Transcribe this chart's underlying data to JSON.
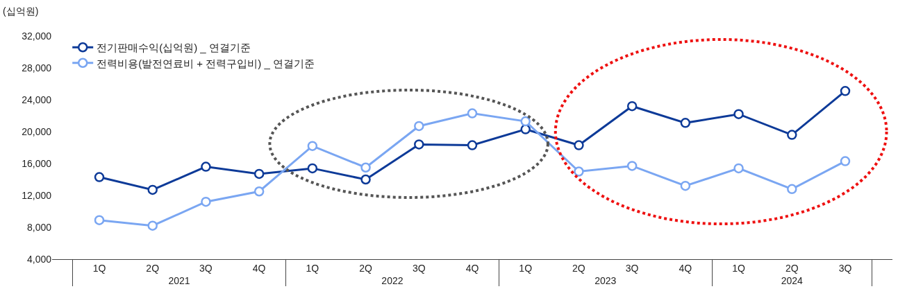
{
  "chart_data": {
    "type": "line",
    "ylabel": "(십억원)",
    "categories": [
      "1Q",
      "2Q",
      "3Q",
      "4Q",
      "1Q",
      "2Q",
      "3Q",
      "4Q",
      "1Q",
      "2Q",
      "3Q",
      "4Q",
      "1Q",
      "2Q",
      "3Q"
    ],
    "annotations": [
      "2021",
      "2022",
      "2023",
      "2024"
    ],
    "series": [
      {
        "name": "전기판매수익(십억원) _ 연결기준",
        "color": "#0d3a98",
        "values": [
          14300,
          12700,
          15600,
          14700,
          15400,
          14000,
          18400,
          18300,
          20300,
          18300,
          23200,
          21100,
          22200,
          19600,
          25100
        ]
      },
      {
        "name": "전력비용(발전연료비 + 전력구입비) _ 연결기준",
        "color": "#7aa6f2",
        "values": [
          8900,
          8200,
          11200,
          12500,
          18200,
          15500,
          20700,
          22300,
          21300,
          15000,
          15700,
          13200,
          15400,
          12800,
          16300
        ]
      }
    ],
    "ylim": [
      4000,
      32000
    ],
    "yticks": [
      {
        "value": 4000,
        "label": "4,000"
      },
      {
        "value": 8000,
        "label": "8,000"
      },
      {
        "value": 12000,
        "label": "12,000"
      },
      {
        "value": 16000,
        "label": "16,000"
      },
      {
        "value": 20000,
        "label": "20,000"
      },
      {
        "value": 24000,
        "label": "24,000"
      },
      {
        "value": 28000,
        "label": "28,000"
      },
      {
        "value": 32000,
        "label": "32,000"
      }
    ],
    "legend": "top left",
    "marker": "circle",
    "line_style": "solid"
  }
}
